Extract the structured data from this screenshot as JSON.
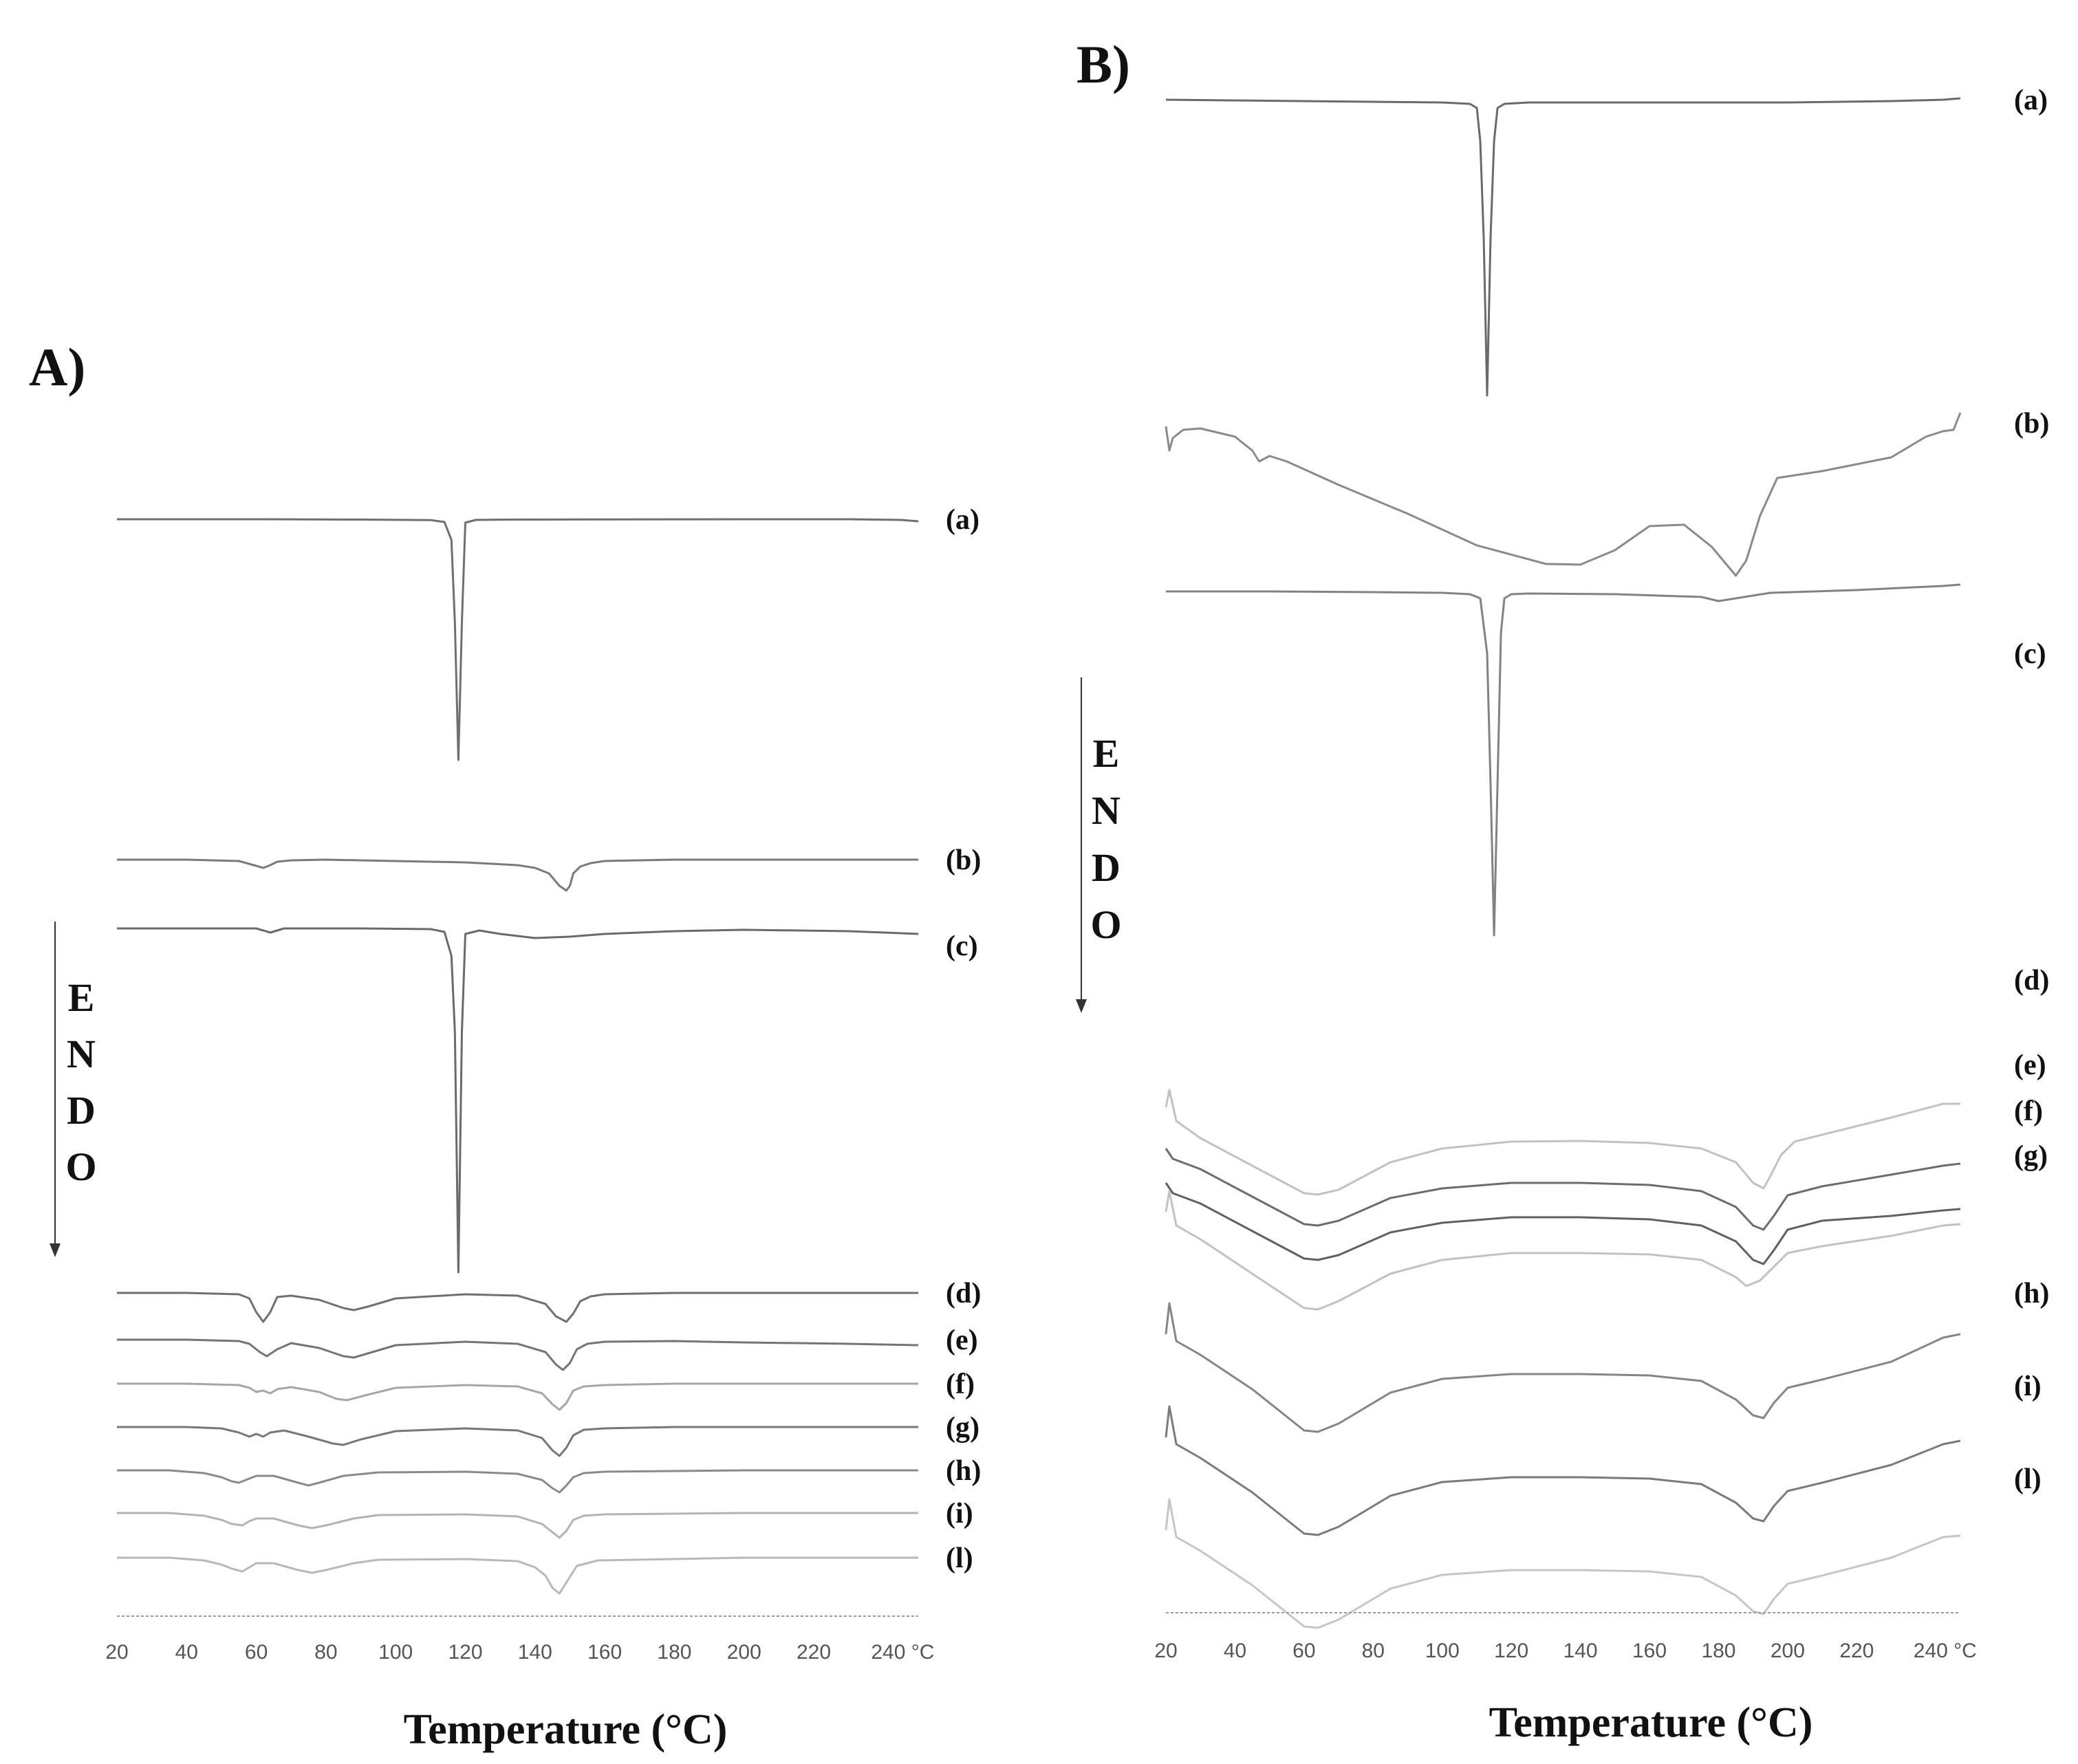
{
  "chart_data": [
    {
      "type": "line",
      "panel_label": "A)",
      "xlabel": "Temperature (°C)",
      "xlim": [
        20,
        250
      ],
      "xticks": [
        "20",
        "40",
        "60",
        "80",
        "100",
        "120",
        "140",
        "160",
        "180",
        "200",
        "220",
        "240 °C"
      ],
      "endo_letters": [
        "E",
        "N",
        "D",
        "O"
      ],
      "series": [
        {
          "name": "(a)",
          "color": "#6f6f6f",
          "x": [
            20,
            30,
            60,
            90,
            110,
            114,
            116,
            117,
            118,
            119,
            120,
            123,
            130,
            160,
            200,
            230,
            245,
            250
          ],
          "y": [
            0,
            0,
            0,
            -0.5,
            -1.2,
            -4,
            -30,
            -150,
            -350,
            -150,
            -5,
            -1,
            -0.6,
            -0.3,
            0,
            0,
            -1,
            -3
          ]
        },
        {
          "name": "(b)",
          "color": "#7a7a7a",
          "x": [
            20,
            40,
            55,
            60,
            62,
            64,
            66,
            70,
            80,
            90,
            100,
            120,
            135,
            140,
            144,
            147,
            149,
            150,
            151,
            153,
            156,
            160,
            180,
            200,
            230,
            250
          ],
          "y": [
            0,
            0,
            -2,
            -9,
            -12,
            -8,
            -3,
            -1,
            0,
            -1,
            -2,
            -4,
            -8,
            -12,
            -20,
            -38,
            -45,
            -38,
            -20,
            -10,
            -5,
            -2,
            0,
            0,
            0,
            0
          ]
        },
        {
          "name": "(c)",
          "color": "#6a6a6a",
          "x": [
            20,
            60,
            64,
            68,
            90,
            110,
            114,
            116,
            117,
            118,
            119,
            120,
            124,
            130,
            140,
            150,
            160,
            180,
            200,
            230,
            250
          ],
          "y": [
            0,
            0,
            -6,
            0,
            0,
            -1,
            -5,
            -40,
            -150,
            -500,
            -150,
            -8,
            -3,
            -8,
            -14,
            -12,
            -8,
            -4,
            -2,
            -4,
            -8
          ]
        },
        {
          "name": "(d)",
          "color": "#707070",
          "x": [
            20,
            40,
            55,
            58,
            60,
            62,
            64,
            66,
            70,
            78,
            85,
            88,
            92,
            100,
            120,
            135,
            143,
            146,
            149,
            151,
            153,
            156,
            160,
            180,
            200,
            230,
            250
          ],
          "y": [
            0,
            0,
            -2,
            -8,
            -28,
            -42,
            -28,
            -6,
            -4,
            -10,
            -22,
            -25,
            -20,
            -8,
            -2,
            -4,
            -16,
            -34,
            -42,
            -30,
            -12,
            -5,
            -2,
            0,
            0,
            0,
            0
          ]
        },
        {
          "name": "(e)",
          "color": "#747474",
          "x": [
            20,
            40,
            55,
            58,
            61,
            63,
            66,
            70,
            78,
            85,
            88,
            92,
            100,
            120,
            135,
            143,
            146,
            148,
            150,
            152,
            155,
            160,
            180,
            200,
            230,
            250
          ],
          "y": [
            0,
            0,
            -2,
            -6,
            -18,
            -24,
            -14,
            -5,
            -12,
            -24,
            -26,
            -20,
            -8,
            -3,
            -6,
            -18,
            -36,
            -44,
            -34,
            -14,
            -6,
            -3,
            -2,
            -4,
            -6,
            -8
          ]
        },
        {
          "name": "(f)",
          "color": "#a6a6a6",
          "x": [
            20,
            40,
            55,
            58,
            60,
            62,
            64,
            66,
            70,
            78,
            83,
            86,
            92,
            100,
            120,
            135,
            142,
            145,
            147,
            149,
            151,
            154,
            160,
            180,
            200,
            230,
            250
          ],
          "y": [
            0,
            0,
            -2,
            -6,
            -12,
            -10,
            -14,
            -8,
            -5,
            -12,
            -22,
            -24,
            -16,
            -6,
            -2,
            -4,
            -14,
            -30,
            -38,
            -28,
            -10,
            -4,
            -2,
            0,
            0,
            0,
            0
          ]
        },
        {
          "name": "(g)",
          "color": "#777777",
          "x": [
            20,
            40,
            50,
            55,
            58,
            60,
            62,
            64,
            68,
            75,
            82,
            85,
            90,
            100,
            120,
            135,
            142,
            145,
            147,
            149,
            151,
            154,
            160,
            180,
            200,
            230,
            250
          ],
          "y": [
            0,
            0,
            -2,
            -8,
            -14,
            -10,
            -14,
            -8,
            -5,
            -14,
            -24,
            -26,
            -18,
            -6,
            -2,
            -5,
            -16,
            -34,
            -42,
            -30,
            -12,
            -4,
            -2,
            0,
            0,
            0,
            0
          ]
        },
        {
          "name": "(h)",
          "color": "#8a8a8a",
          "x": [
            20,
            35,
            45,
            50,
            53,
            55,
            57,
            60,
            65,
            72,
            75,
            78,
            85,
            95,
            120,
            135,
            142,
            145,
            147,
            149,
            151,
            154,
            160,
            180,
            200,
            230,
            250
          ],
          "y": [
            0,
            0,
            -4,
            -10,
            -16,
            -18,
            -14,
            -8,
            -8,
            -18,
            -22,
            -18,
            -8,
            -3,
            -2,
            -5,
            -14,
            -26,
            -32,
            -22,
            -10,
            -4,
            -2,
            -1,
            0,
            0,
            0
          ]
        },
        {
          "name": "(i)",
          "color": "#b3b3b3",
          "x": [
            20,
            35,
            45,
            50,
            53,
            56,
            58,
            60,
            65,
            72,
            76,
            80,
            88,
            95,
            120,
            135,
            142,
            145,
            147,
            149,
            151,
            154,
            160,
            180,
            200,
            230,
            250
          ],
          "y": [
            0,
            0,
            -4,
            -10,
            -16,
            -18,
            -12,
            -8,
            -8,
            -18,
            -22,
            -18,
            -8,
            -3,
            -2,
            -5,
            -16,
            -28,
            -36,
            -26,
            -10,
            -4,
            -2,
            -1,
            0,
            0,
            0
          ]
        },
        {
          "name": "(l)",
          "color": "#b8b8b8",
          "x": [
            20,
            35,
            45,
            50,
            53,
            56,
            58,
            60,
            65,
            72,
            76,
            80,
            88,
            95,
            120,
            135,
            140,
            143,
            145,
            147,
            149,
            152,
            158,
            180,
            200,
            230,
            250
          ],
          "y": [
            0,
            0,
            -4,
            -10,
            -16,
            -20,
            -14,
            -8,
            -8,
            -18,
            -22,
            -18,
            -8,
            -3,
            -2,
            -5,
            -14,
            -26,
            -44,
            -52,
            -36,
            -12,
            -4,
            -2,
            0,
            0,
            0
          ]
        }
      ]
    },
    {
      "type": "line",
      "panel_label": "B)",
      "xlabel": "Temperature (°C)",
      "xlim": [
        20,
        250
      ],
      "xticks": [
        "20",
        "40",
        "60",
        "80",
        "100",
        "120",
        "140",
        "160",
        "180",
        "200",
        "220",
        "240 °C"
      ],
      "endo_letters": [
        "E",
        "N",
        "D",
        "O"
      ],
      "series": [
        {
          "name": "(a)",
          "color": "#6a6a6a",
          "x": [
            20,
            40,
            80,
            100,
            108,
            110,
            111,
            112,
            113,
            114,
            115,
            116,
            118,
            125,
            160,
            200,
            230,
            245,
            250
          ],
          "y": [
            0,
            -1,
            -3,
            -4,
            -6,
            -12,
            -60,
            -200,
            -430,
            -200,
            -60,
            -12,
            -6,
            -4,
            -4,
            -4,
            -2,
            0,
            2
          ]
        },
        {
          "name": "(b)",
          "color": "#8a8a8a",
          "x": [
            20,
            21,
            22,
            25,
            30,
            40,
            45,
            47,
            50,
            55,
            70,
            90,
            110,
            130,
            140,
            150,
            160,
            170,
            178,
            185,
            188,
            192,
            197,
            210,
            230,
            240,
            245,
            248,
            250
          ],
          "y": [
            -5,
            -40,
            -22,
            -10,
            -8,
            -20,
            -40,
            -56,
            -48,
            -56,
            -90,
            -132,
            -178,
            -205,
            -206,
            -185,
            -150,
            -148,
            -180,
            -222,
            -200,
            -135,
            -80,
            -70,
            -50,
            -20,
            -12,
            -10,
            15
          ]
        },
        {
          "name": "(c)",
          "color": "#828282",
          "x": [
            20,
            50,
            80,
            100,
            108,
            111,
            113,
            114,
            115,
            116,
            117,
            118,
            120,
            125,
            150,
            175,
            180,
            185,
            195,
            220,
            245,
            250
          ],
          "y": [
            0,
            0,
            -1,
            -2,
            -4,
            -10,
            -90,
            -280,
            -500,
            -280,
            -60,
            -10,
            -4,
            -3,
            -4,
            -8,
            -14,
            -10,
            -2,
            2,
            8,
            10
          ]
        },
        {
          "name": "(d)",
          "color": "#c2c2c2",
          "x": [
            20,
            21,
            23,
            30,
            45,
            60,
            64,
            70,
            85,
            100,
            120,
            140,
            160,
            175,
            185,
            190,
            193,
            195,
            198,
            202,
            210,
            230,
            245,
            250
          ],
          "y": [
            0,
            25,
            -20,
            -45,
            -85,
            -125,
            -127,
            -120,
            -80,
            -60,
            -50,
            -49,
            -52,
            -60,
            -80,
            -110,
            -118,
            -100,
            -70,
            -50,
            -40,
            -15,
            5,
            5
          ]
        },
        {
          "name": "(e)",
          "color": "#6c6c6c",
          "x": [
            20,
            22,
            30,
            45,
            60,
            64,
            70,
            85,
            100,
            120,
            140,
            160,
            175,
            185,
            190,
            193,
            196,
            200,
            210,
            230,
            245,
            250
          ],
          "y": [
            0,
            -15,
            -30,
            -70,
            -110,
            -112,
            -105,
            -72,
            -58,
            -50,
            -50,
            -53,
            -62,
            -85,
            -112,
            -118,
            -98,
            -68,
            -55,
            -38,
            -25,
            -22
          ]
        },
        {
          "name": "(f)",
          "color": "#606060",
          "x": [
            20,
            22,
            30,
            45,
            60,
            64,
            70,
            85,
            100,
            120,
            140,
            160,
            175,
            185,
            190,
            193,
            196,
            200,
            210,
            230,
            245,
            250
          ],
          "y": [
            0,
            -15,
            -30,
            -70,
            -110,
            -112,
            -105,
            -72,
            -58,
            -50,
            -50,
            -53,
            -62,
            -85,
            -112,
            -118,
            -98,
            -68,
            -55,
            -48,
            -40,
            -38
          ]
        },
        {
          "name": "(g)",
          "color": "#c2c2c2",
          "x": [
            20,
            21,
            23,
            30,
            45,
            60,
            64,
            70,
            85,
            100,
            120,
            140,
            160,
            175,
            185,
            188,
            192,
            196,
            200,
            210,
            230,
            245,
            250
          ],
          "y": [
            0,
            30,
            -20,
            -40,
            -90,
            -140,
            -142,
            -130,
            -90,
            -70,
            -60,
            -60,
            -62,
            -70,
            -95,
            -108,
            -100,
            -80,
            -60,
            -50,
            -35,
            -20,
            -18
          ]
        },
        {
          "name": "(h)",
          "color": "#858585",
          "x": [
            20,
            21,
            23,
            30,
            45,
            60,
            64,
            70,
            85,
            100,
            120,
            140,
            160,
            175,
            185,
            190,
            193,
            196,
            200,
            210,
            230,
            245,
            250
          ],
          "y": [
            0,
            45,
            -10,
            -30,
            -80,
            -140,
            -142,
            -130,
            -85,
            -65,
            -58,
            -58,
            -60,
            -68,
            -95,
            -118,
            -122,
            -100,
            -78,
            -66,
            -40,
            -5,
            0
          ]
        },
        {
          "name": "(i)",
          "color": "#7a7a7a",
          "x": [
            20,
            21,
            23,
            30,
            45,
            60,
            64,
            70,
            85,
            100,
            120,
            140,
            160,
            175,
            185,
            190,
            193,
            196,
            200,
            210,
            230,
            245,
            250
          ],
          "y": [
            0,
            45,
            -10,
            -30,
            -80,
            -140,
            -142,
            -130,
            -85,
            -65,
            -58,
            -58,
            -60,
            -68,
            -95,
            -118,
            -122,
            -100,
            -78,
            -66,
            -40,
            -10,
            -5
          ]
        },
        {
          "name": "(l)",
          "color": "#c6c6c6",
          "x": [
            20,
            21,
            23,
            30,
            45,
            60,
            64,
            70,
            85,
            100,
            120,
            140,
            160,
            175,
            185,
            190,
            193,
            196,
            200,
            210,
            230,
            245,
            250
          ],
          "y": [
            0,
            45,
            -10,
            -30,
            -80,
            -140,
            -142,
            -130,
            -85,
            -65,
            -58,
            -58,
            -60,
            -68,
            -95,
            -118,
            -122,
            -100,
            -78,
            -66,
            -40,
            -10,
            -8
          ]
        }
      ]
    }
  ]
}
